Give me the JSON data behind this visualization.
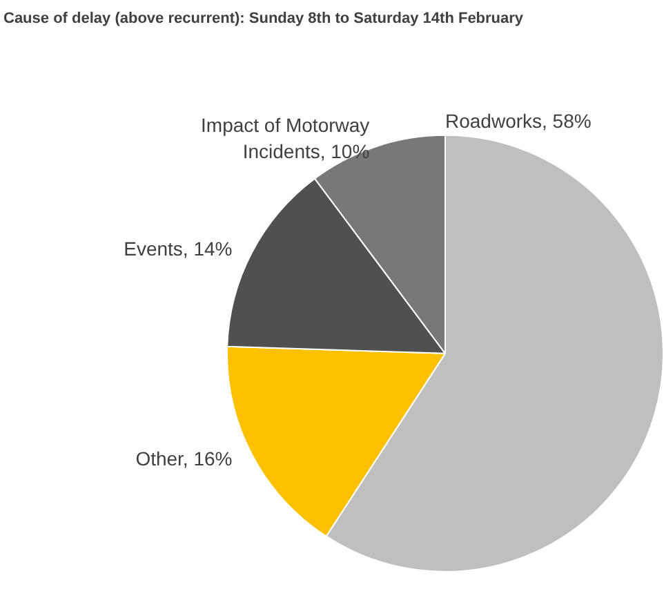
{
  "chart_data": {
    "type": "pie",
    "title": "Cause of delay (above recurrent): Sunday 8th to Saturday 14th February",
    "categories": [
      "Roadworks",
      "Other",
      "Events",
      "Impact of Motorway Incidents"
    ],
    "values": [
      58,
      16,
      14,
      10
    ],
    "value_labels": [
      "58%",
      "16%",
      "14%",
      "10%"
    ],
    "colors": [
      "#bfbfbf",
      "#ffc000",
      "#505050",
      "#787878"
    ]
  }
}
